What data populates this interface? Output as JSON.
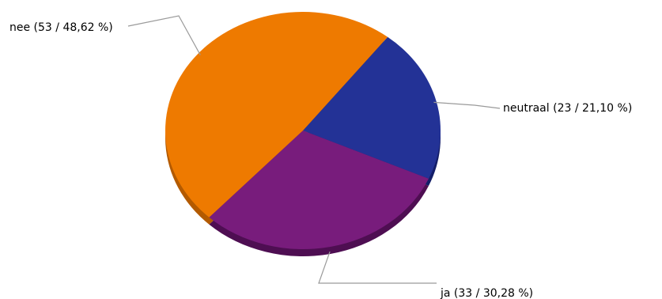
{
  "chart_data": {
    "type": "pie",
    "title": "",
    "three_d": true,
    "start_angle_deg": 52,
    "direction": "clockwise",
    "slices": [
      {
        "name": "neutraal",
        "count": 23,
        "percent": 21.1,
        "label": "neutraal (23 / 21,10 %)",
        "color": "#233296",
        "side_color": "#141e68"
      },
      {
        "name": "ja",
        "count": 33,
        "percent": 30.28,
        "label": "ja (33 / 30,28 %)",
        "color": "#781c7c",
        "side_color": "#4e0e52"
      },
      {
        "name": "nee",
        "count": 53,
        "percent": 48.62,
        "label": "nee (53 / 48,62 %)",
        "color": "#ee7a00",
        "side_color": "#b35a00"
      }
    ]
  }
}
